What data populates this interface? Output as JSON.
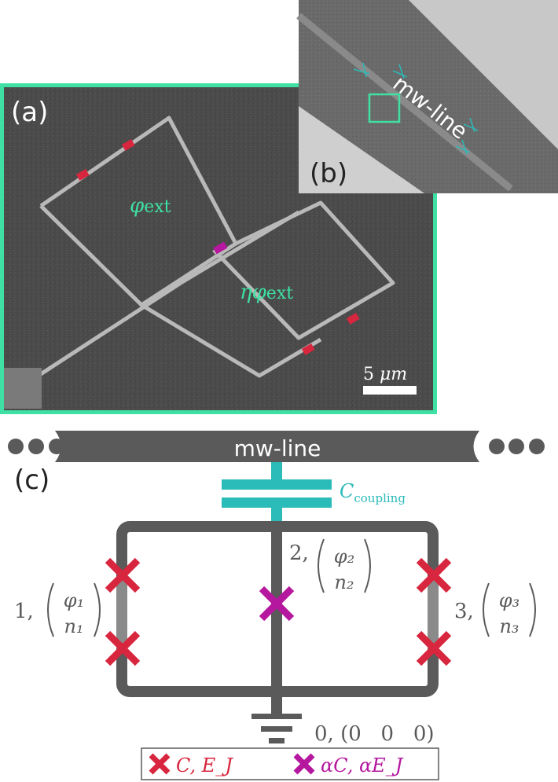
{
  "panels": {
    "a": {
      "label": "(a)",
      "phi_ext": "φext",
      "eta_phi_ext": "ηφext",
      "scale_bar": "5 μm",
      "frame_color": "#3fe0a3"
    },
    "b": {
      "label": "(b)",
      "mw_line": "mw-line"
    },
    "c": {
      "label": "(c)"
    }
  },
  "circuit": {
    "line_label": "mw-line",
    "coupling_label": "C",
    "coupling_sub": "coupling",
    "node0": "0, (0   0   0)",
    "node1": {
      "index": "1,",
      "phi": "φ₁",
      "n": "n₁"
    },
    "node2": {
      "index": "2,",
      "phi": "φ₂",
      "n": "n₂"
    },
    "node3": {
      "index": "3,",
      "phi": "φ₃",
      "n": "n₃"
    }
  },
  "legend": {
    "item1": "C, E_J",
    "item2": "αC, αE_J"
  },
  "colors": {
    "junction_red": "#d7263d",
    "junction_magenta": "#b5179e",
    "coupling_teal": "#2bbbb8",
    "wire": "#5a5a5a",
    "label_text": "#5a5a5a"
  }
}
